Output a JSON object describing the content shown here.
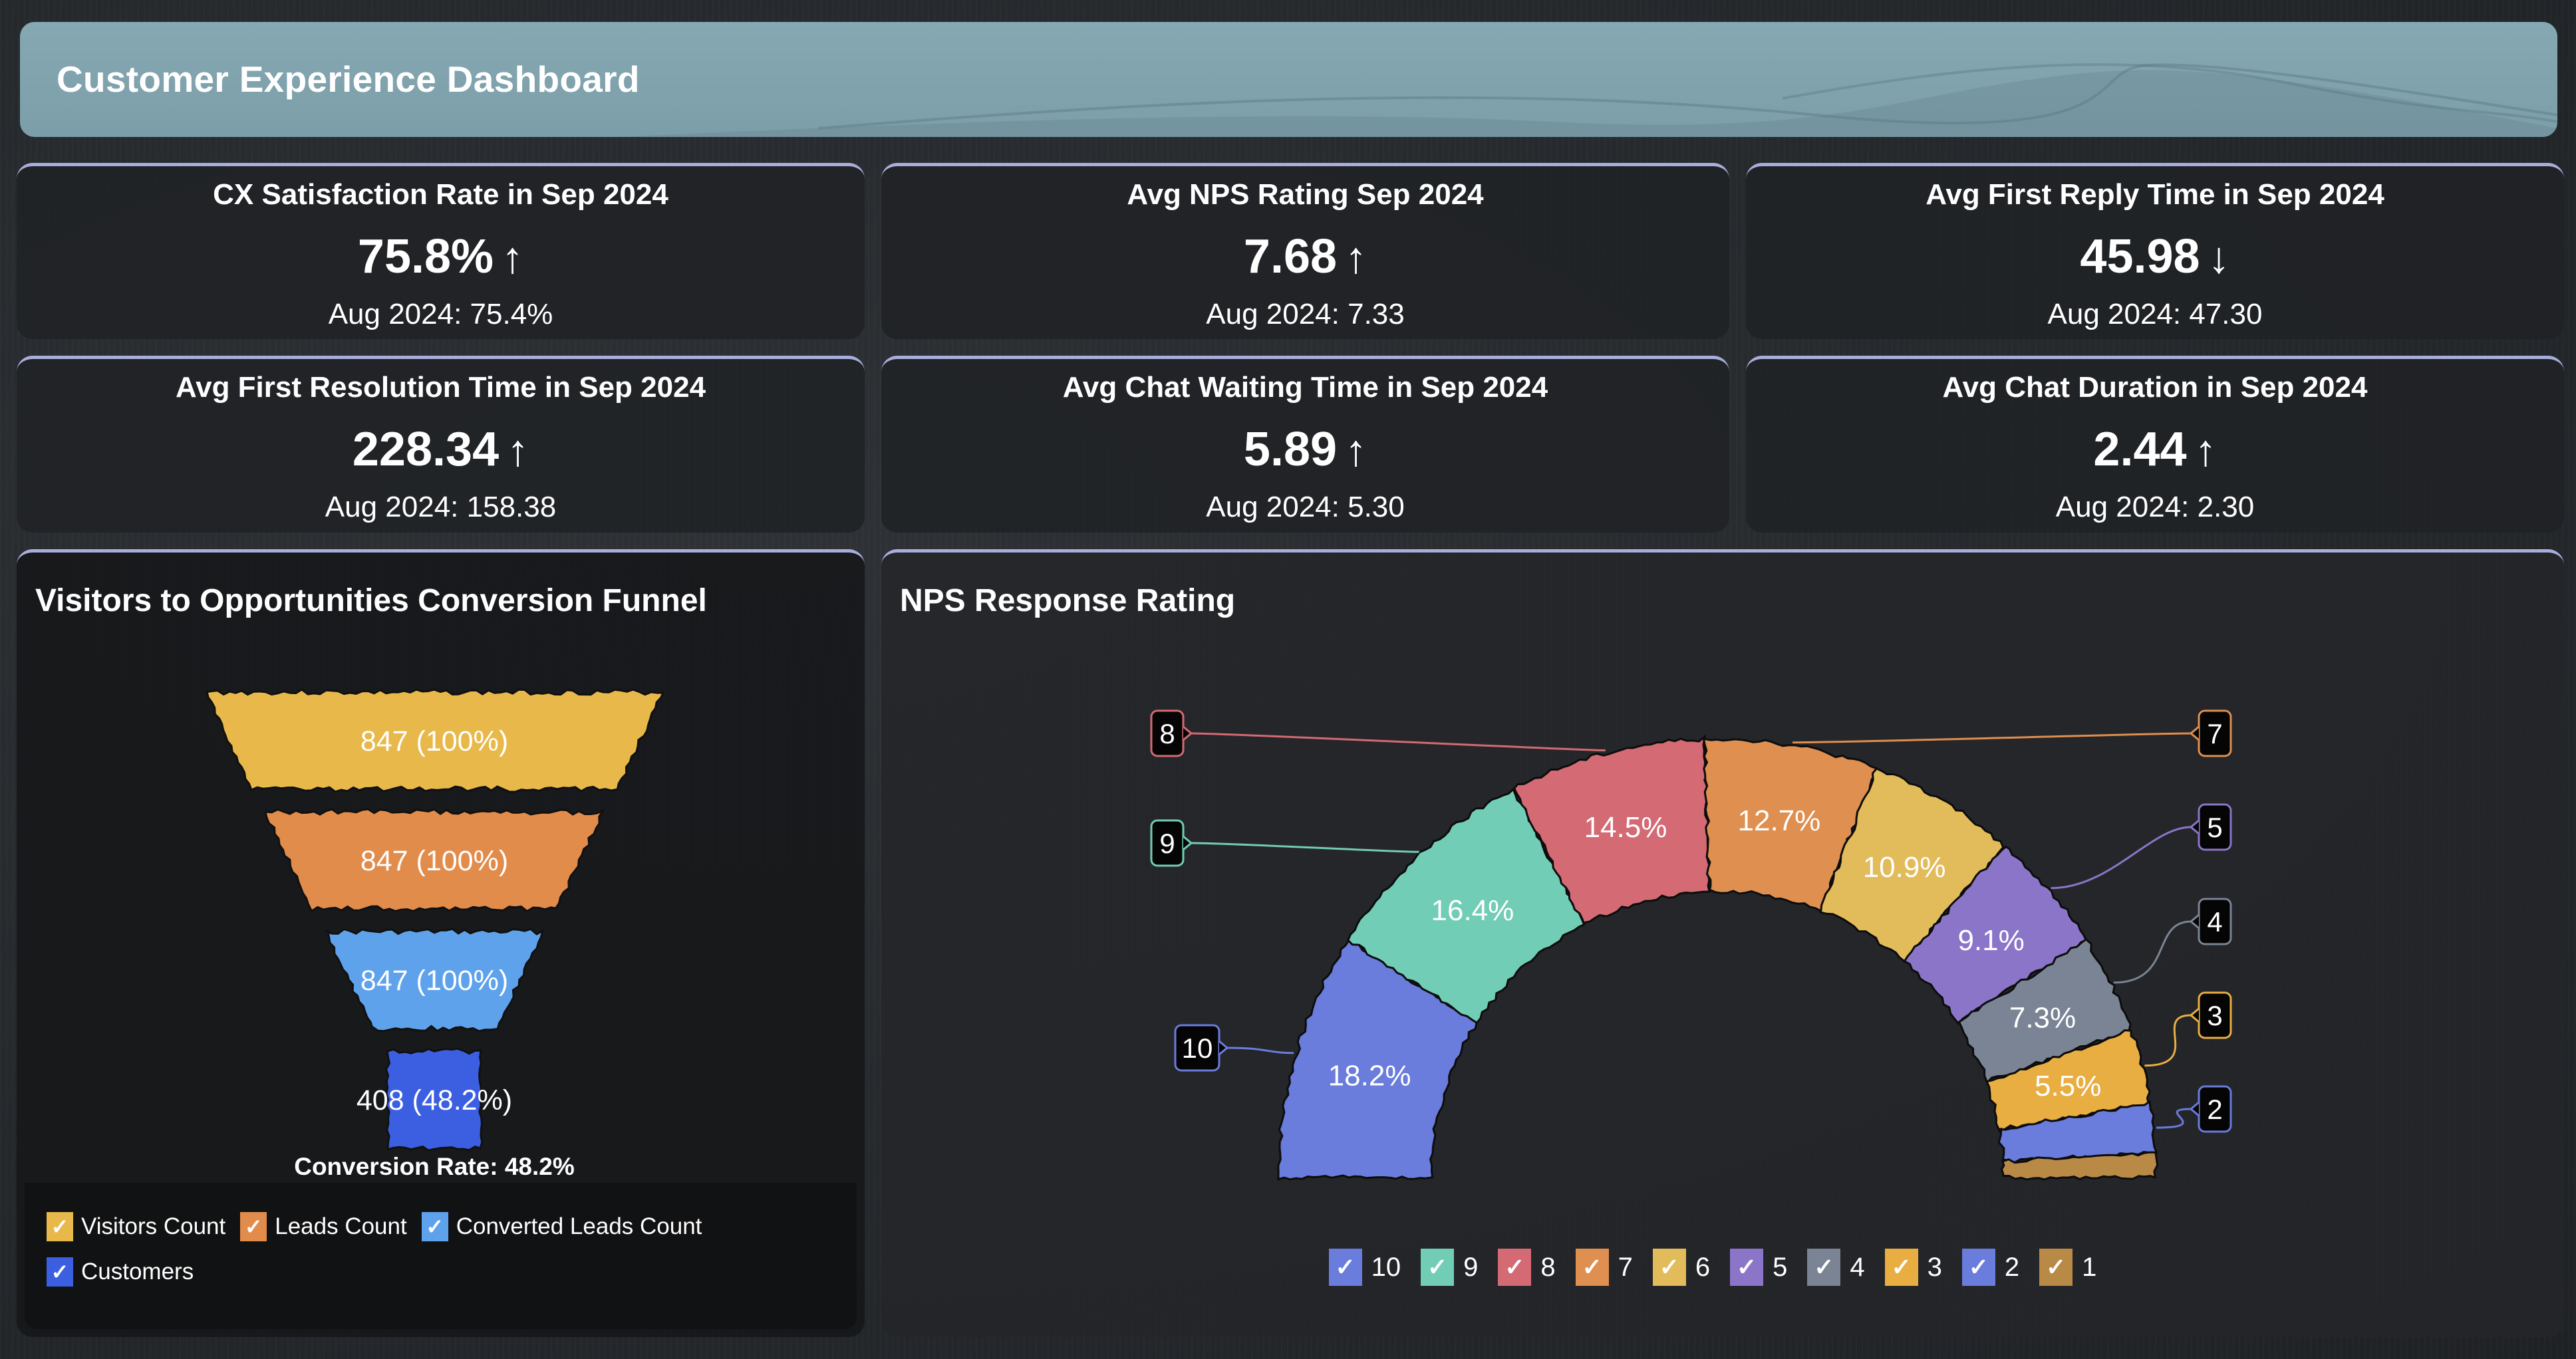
{
  "header": {
    "title": "Customer Experience Dashboard"
  },
  "kpis": [
    {
      "title": "CX Satisfaction Rate in Sep 2024",
      "value": "75.8%",
      "trend": "↑",
      "trend_icon": "arrow-up-icon",
      "previous": "Aug 2024: 75.4%"
    },
    {
      "title": "Avg NPS Rating Sep 2024",
      "value": "7.68",
      "trend": "↑",
      "trend_icon": "arrow-up-icon",
      "previous": "Aug 2024: 7.33"
    },
    {
      "title": "Avg First Reply Time in Sep 2024",
      "value": "45.98",
      "trend": "↓",
      "trend_icon": "arrow-down-icon",
      "previous": "Aug 2024: 47.30"
    },
    {
      "title": "Avg First Resolution Time in Sep 2024",
      "value": "228.34",
      "trend": "↑",
      "trend_icon": "arrow-up-icon",
      "previous": "Aug 2024: 158.38"
    },
    {
      "title": "Avg Chat Waiting Time in Sep 2024",
      "value": "5.89",
      "trend": "↑",
      "trend_icon": "arrow-up-icon",
      "previous": "Aug 2024: 5.30"
    },
    {
      "title": "Avg Chat Duration in Sep 2024",
      "value": "2.44",
      "trend": "↑",
      "trend_icon": "arrow-up-icon",
      "previous": "Aug 2024: 2.30"
    }
  ],
  "funnel": {
    "title": "Visitors to Opportunities Conversion Funnel",
    "footer": "Conversion Rate: 48.2%",
    "check_glyph": "✓"
  },
  "nps": {
    "title": "NPS Response Rating",
    "check_glyph": "✓"
  },
  "chart_data": [
    {
      "type": "funnel",
      "title": "Visitors to Opportunities Conversion Funnel",
      "categories": [
        "Visitors Count",
        "Leads Count",
        "Converted Leads Count",
        "Customers"
      ],
      "values": [
        847,
        847,
        847,
        408
      ],
      "labels": [
        "847 (100%)",
        "847 (100%)",
        "847 (100%)",
        "408 (48.2%)"
      ],
      "percent_of_first": [
        100,
        100,
        100,
        48.2
      ],
      "colors": [
        "#e8b84a",
        "#e28c4c",
        "#5ea2ec",
        "#3b5fe0"
      ],
      "annotation": "Conversion Rate: 48.2%",
      "legend": [
        "Visitors Count",
        "Leads Count",
        "Converted Leads Count",
        "Customers"
      ],
      "legend_position": "bottom-left"
    },
    {
      "type": "pie",
      "variant": "semi-donut",
      "title": "NPS Response Rating",
      "categories": [
        "10",
        "9",
        "8",
        "7",
        "6",
        "5",
        "4",
        "3",
        "2",
        "1"
      ],
      "values": [
        18.2,
        16.4,
        14.5,
        12.7,
        10.9,
        9.1,
        7.3,
        5.5,
        3.6,
        1.8
      ],
      "data_labels": [
        "18.2%",
        "16.4%",
        "14.5%",
        "12.7%",
        "10.9%",
        "9.1%",
        "7.3%",
        "5.5%",
        "",
        ""
      ],
      "callouts": [
        "10",
        "9",
        "8",
        "7",
        "",
        "5",
        "4",
        "3",
        "2",
        ""
      ],
      "colors": [
        "#6a7cdc",
        "#72cdb6",
        "#d46a74",
        "#df8f4f",
        "#e2bb5a",
        "#8b75c9",
        "#7a8494",
        "#e8ae42",
        "#6a7cdc",
        "#b98946"
      ],
      "legend": [
        "10",
        "9",
        "8",
        "7",
        "6",
        "5",
        "4",
        "3",
        "2",
        "1"
      ],
      "legend_position": "bottom"
    }
  ]
}
